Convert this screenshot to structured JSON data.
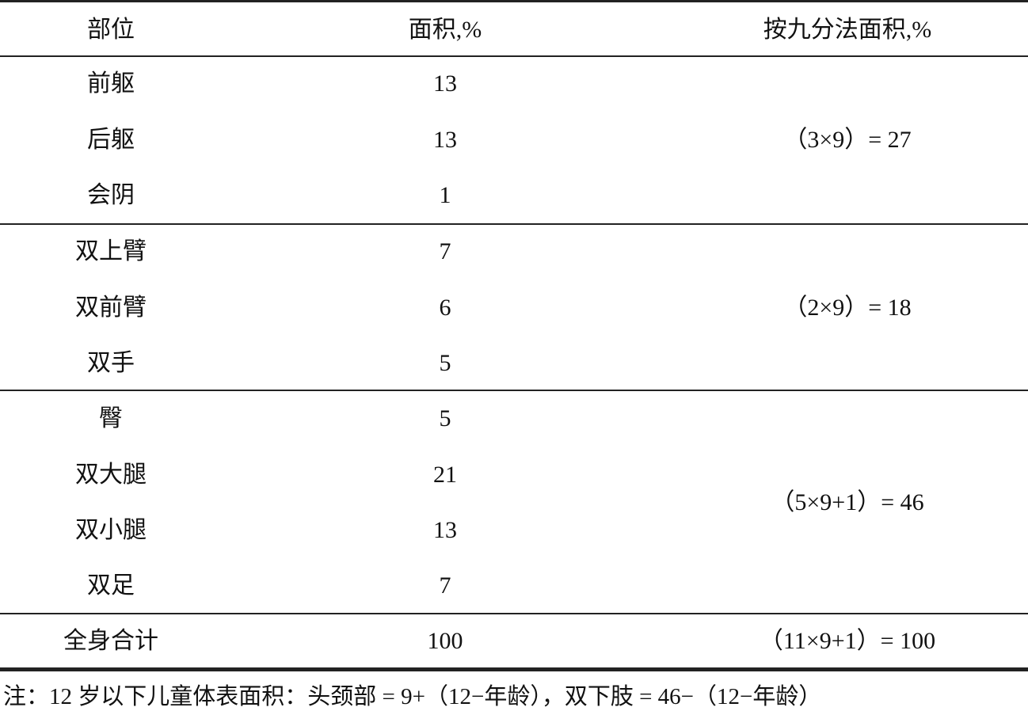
{
  "table": {
    "headers": [
      "部位",
      "面积,%",
      "按九分法面积,%"
    ],
    "groups": [
      {
        "rows": [
          {
            "part": "前躯",
            "area": "13"
          },
          {
            "part": "后躯",
            "area": "13"
          },
          {
            "part": "会阴",
            "area": "1"
          }
        ],
        "nine_rule": "（3×9）= 27"
      },
      {
        "rows": [
          {
            "part": "双上臂",
            "area": "7"
          },
          {
            "part": "双前臂",
            "area": "6"
          },
          {
            "part": "双手",
            "area": "5"
          }
        ],
        "nine_rule": "（2×9）= 18"
      },
      {
        "rows": [
          {
            "part": "臀",
            "area": "5"
          },
          {
            "part": "双大腿",
            "area": "21"
          },
          {
            "part": "双小腿",
            "area": "13"
          },
          {
            "part": "双足",
            "area": "7"
          }
        ],
        "nine_rule": "（5×9+1）= 46"
      }
    ],
    "total": {
      "part": "全身合计",
      "area": "100",
      "nine_rule": "（11×9+1）= 100"
    }
  },
  "note": "注：12 岁以下儿童体表面积：头颈部 = 9+（12−年龄），双下肢 = 46−（12−年龄）"
}
